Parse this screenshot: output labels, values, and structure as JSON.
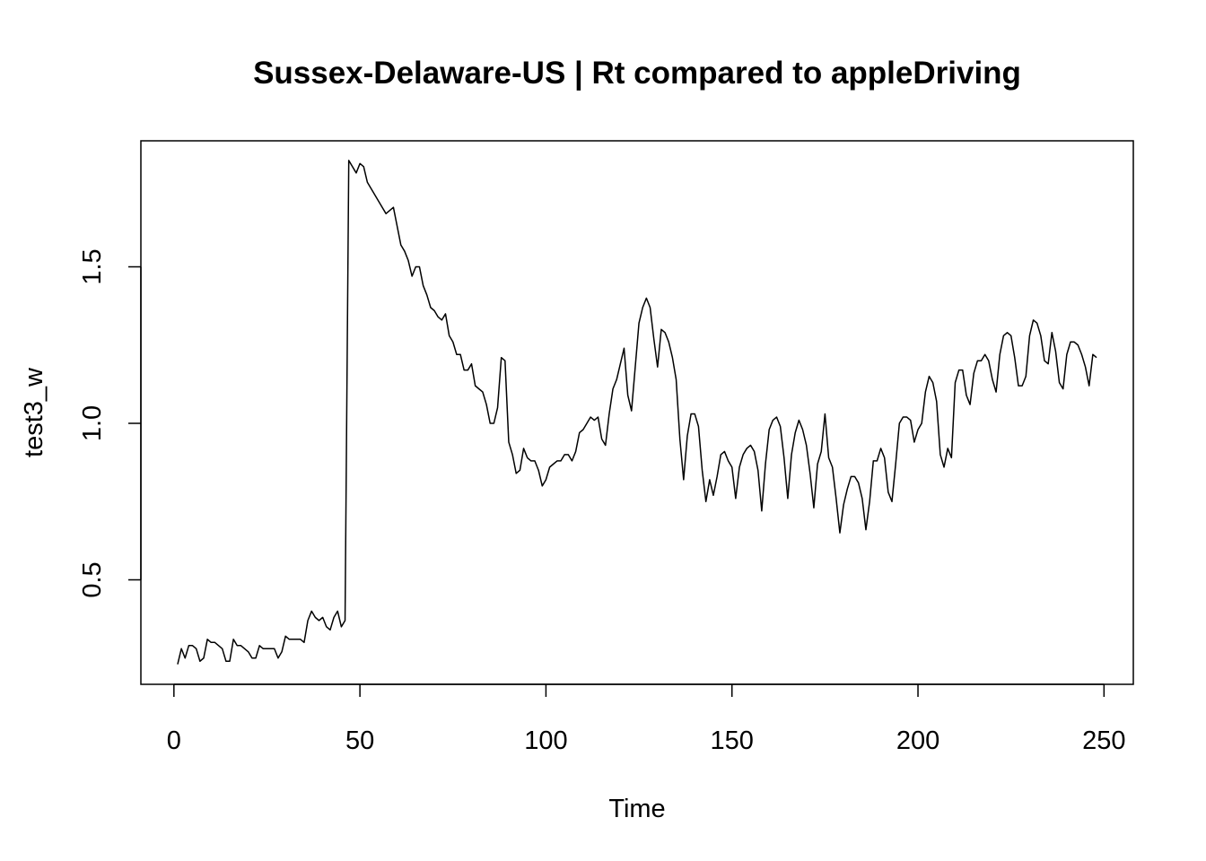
{
  "chart_data": {
    "type": "line",
    "title": "Sussex-Delaware-US | Rt compared to appleDriving",
    "xlabel": "Time",
    "ylabel": "test3_w",
    "color": "#000000",
    "x": [
      1,
      2,
      3,
      4,
      5,
      6,
      7,
      8,
      9,
      10,
      11,
      12,
      13,
      14,
      15,
      16,
      17,
      18,
      19,
      20,
      21,
      22,
      23,
      24,
      25,
      26,
      27,
      28,
      29,
      30,
      31,
      32,
      33,
      34,
      35,
      36,
      37,
      38,
      39,
      40,
      41,
      42,
      43,
      44,
      45,
      46,
      47,
      48,
      49,
      50,
      51,
      52,
      53,
      54,
      55,
      56,
      57,
      58,
      59,
      60,
      61,
      62,
      63,
      64,
      65,
      66,
      67,
      68,
      69,
      70,
      71,
      72,
      73,
      74,
      75,
      76,
      77,
      78,
      79,
      80,
      81,
      82,
      83,
      84,
      85,
      86,
      87,
      88,
      89,
      90,
      91,
      92,
      93,
      94,
      95,
      96,
      97,
      98,
      99,
      100,
      101,
      102,
      103,
      104,
      105,
      106,
      107,
      108,
      109,
      110,
      111,
      112,
      113,
      114,
      115,
      116,
      117,
      118,
      119,
      120,
      121,
      122,
      123,
      124,
      125,
      126,
      127,
      128,
      129,
      130,
      131,
      132,
      133,
      134,
      135,
      136,
      137,
      138,
      139,
      140,
      141,
      142,
      143,
      144,
      145,
      146,
      147,
      148,
      149,
      150,
      151,
      152,
      153,
      154,
      155,
      156,
      157,
      158,
      159,
      160,
      161,
      162,
      163,
      164,
      165,
      166,
      167,
      168,
      169,
      170,
      171,
      172,
      173,
      174,
      175,
      176,
      177,
      178,
      179,
      180,
      181,
      182,
      183,
      184,
      185,
      186,
      187,
      188,
      189,
      190,
      191,
      192,
      193,
      194,
      195,
      196,
      197,
      198,
      199,
      200,
      201,
      202,
      203,
      204,
      205,
      206,
      207,
      208,
      209,
      210,
      211,
      212,
      213,
      214,
      215,
      216,
      217,
      218,
      219,
      220,
      221,
      222,
      223,
      224,
      225,
      226,
      227,
      228,
      229,
      230,
      231,
      232,
      233,
      234,
      235,
      236,
      237,
      238,
      239,
      240,
      241,
      242,
      243,
      244,
      245,
      246,
      247,
      248
    ],
    "values": [
      0.23,
      0.28,
      0.25,
      0.29,
      0.29,
      0.28,
      0.24,
      0.25,
      0.31,
      0.3,
      0.3,
      0.29,
      0.28,
      0.24,
      0.24,
      0.31,
      0.29,
      0.29,
      0.28,
      0.27,
      0.25,
      0.25,
      0.29,
      0.28,
      0.28,
      0.28,
      0.28,
      0.25,
      0.27,
      0.32,
      0.31,
      0.31,
      0.31,
      0.31,
      0.3,
      0.37,
      0.4,
      0.38,
      0.37,
      0.38,
      0.35,
      0.34,
      0.38,
      0.4,
      0.35,
      0.37,
      1.84,
      1.82,
      1.8,
      1.83,
      1.82,
      1.77,
      1.75,
      1.73,
      1.71,
      1.69,
      1.67,
      1.68,
      1.69,
      1.63,
      1.57,
      1.55,
      1.52,
      1.47,
      1.5,
      1.5,
      1.44,
      1.41,
      1.37,
      1.36,
      1.34,
      1.33,
      1.35,
      1.28,
      1.26,
      1.22,
      1.22,
      1.17,
      1.17,
      1.19,
      1.12,
      1.11,
      1.1,
      1.06,
      1.0,
      1.0,
      1.05,
      1.21,
      1.2,
      0.94,
      0.9,
      0.84,
      0.85,
      0.92,
      0.89,
      0.88,
      0.88,
      0.85,
      0.8,
      0.82,
      0.86,
      0.87,
      0.88,
      0.88,
      0.9,
      0.9,
      0.88,
      0.91,
      0.97,
      0.98,
      1.0,
      1.02,
      1.01,
      1.02,
      0.95,
      0.93,
      1.03,
      1.11,
      1.14,
      1.19,
      1.24,
      1.09,
      1.04,
      1.18,
      1.32,
      1.37,
      1.4,
      1.37,
      1.27,
      1.18,
      1.3,
      1.29,
      1.26,
      1.21,
      1.14,
      0.95,
      0.82,
      0.96,
      1.03,
      1.03,
      0.99,
      0.85,
      0.75,
      0.82,
      0.77,
      0.83,
      0.9,
      0.91,
      0.88,
      0.86,
      0.76,
      0.86,
      0.9,
      0.92,
      0.93,
      0.91,
      0.85,
      0.72,
      0.87,
      0.98,
      1.01,
      1.02,
      0.99,
      0.89,
      0.76,
      0.9,
      0.97,
      1.01,
      0.98,
      0.93,
      0.84,
      0.73,
      0.87,
      0.91,
      1.03,
      0.89,
      0.86,
      0.76,
      0.65,
      0.74,
      0.79,
      0.83,
      0.83,
      0.81,
      0.76,
      0.66,
      0.75,
      0.88,
      0.88,
      0.92,
      0.89,
      0.78,
      0.75,
      0.87,
      1.0,
      1.02,
      1.02,
      1.01,
      0.94,
      0.98,
      1.0,
      1.1,
      1.15,
      1.13,
      1.07,
      0.9,
      0.86,
      0.92,
      0.89,
      1.13,
      1.17,
      1.17,
      1.09,
      1.06,
      1.16,
      1.2,
      1.2,
      1.22,
      1.2,
      1.14,
      1.1,
      1.22,
      1.28,
      1.29,
      1.28,
      1.21,
      1.12,
      1.12,
      1.15,
      1.28,
      1.33,
      1.32,
      1.28,
      1.2,
      1.19,
      1.29,
      1.23,
      1.13,
      1.11,
      1.22,
      1.26,
      1.26,
      1.25,
      1.22,
      1.18,
      1.12,
      1.22,
      1.21
    ],
    "xlim": [
      -8.88,
      257.88
    ],
    "ylim": [
      0.1662,
      1.9026
    ],
    "xticks": [
      0,
      50,
      100,
      150,
      200,
      250
    ],
    "yticks": [
      {
        "value": 0.5,
        "label": "0.5"
      },
      {
        "value": 1.0,
        "label": "1.0"
      },
      {
        "value": 1.5,
        "label": "1.5"
      }
    ]
  }
}
